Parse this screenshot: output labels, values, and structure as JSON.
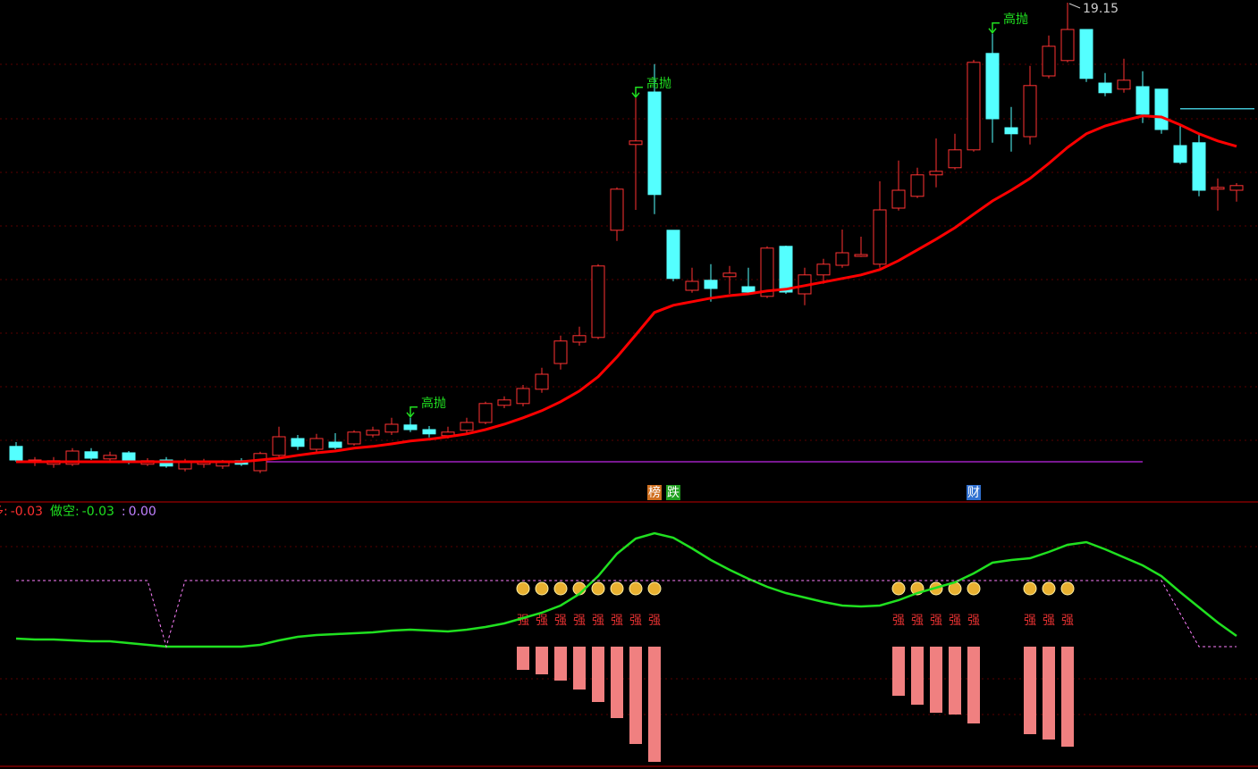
{
  "chart_data": [
    {
      "type": "candlestick",
      "ylim": [
        5.725,
        19.225
      ],
      "up_color": "#ff3232",
      "down_color": "#54ffff",
      "open": [
        6.73,
        6.28,
        6.23,
        6.23,
        6.58,
        6.38,
        6.55,
        6.23,
        6.35,
        6.1,
        6.23,
        6.18,
        6.33,
        6.05,
        6.48,
        6.95,
        6.65,
        6.85,
        6.8,
        7.05,
        7.13,
        7.33,
        7.2,
        7.03,
        7.18,
        7.4,
        7.88,
        7.93,
        8.33,
        9.05,
        9.65,
        9.78,
        12.78,
        15.18,
        16.65,
        12.78,
        11.1,
        11.38,
        11.48,
        11.2,
        10.93,
        12.33,
        11.0,
        11.53,
        11.8,
        12.05,
        11.83,
        13.4,
        13.73,
        14.33,
        14.53,
        15.03,
        17.73,
        15.65,
        15.4,
        17.1,
        17.53,
        18.4,
        16.9,
        16.73,
        16.8,
        16.73,
        15.15,
        15.23,
        13.93,
        13.9
      ],
      "high": [
        6.85,
        6.43,
        6.43,
        6.68,
        6.68,
        6.58,
        6.6,
        6.4,
        6.43,
        6.38,
        6.38,
        6.35,
        6.4,
        6.58,
        7.28,
        7.05,
        7.08,
        7.1,
        7.18,
        7.28,
        7.53,
        7.53,
        7.3,
        7.28,
        7.53,
        7.98,
        8.13,
        8.45,
        8.93,
        9.83,
        10.08,
        11.83,
        13.98,
        16.48,
        17.43,
        12.78,
        11.73,
        11.83,
        11.78,
        11.73,
        12.33,
        12.35,
        11.73,
        11.98,
        12.8,
        12.6,
        14.15,
        14.73,
        14.53,
        15.35,
        15.48,
        17.55,
        18.28,
        16.23,
        17.38,
        18.23,
        19.15,
        18.4,
        17.18,
        17.58,
        17.23,
        16.73,
        15.73,
        15.48,
        14.23,
        14.1
      ],
      "low": [
        6.3,
        6.18,
        6.13,
        6.18,
        6.35,
        6.28,
        6.23,
        6.18,
        6.13,
        6.03,
        6.13,
        6.1,
        6.18,
        5.98,
        6.43,
        6.63,
        6.58,
        6.65,
        6.75,
        6.98,
        7.05,
        7.13,
        6.98,
        6.95,
        7.1,
        7.35,
        7.8,
        7.85,
        8.23,
        8.88,
        9.55,
        9.73,
        12.48,
        13.35,
        13.23,
        11.35,
        11.03,
        10.78,
        11.0,
        11.0,
        10.88,
        11.0,
        10.68,
        11.28,
        11.73,
        12.03,
        11.73,
        13.33,
        13.68,
        13.98,
        14.48,
        14.98,
        15.23,
        14.98,
        15.18,
        17.03,
        17.48,
        16.93,
        16.53,
        16.63,
        15.78,
        15.48,
        14.63,
        13.73,
        13.33,
        13.58
      ],
      "close": [
        6.35,
        6.35,
        6.33,
        6.6,
        6.4,
        6.48,
        6.28,
        6.33,
        6.18,
        6.28,
        6.28,
        6.28,
        6.23,
        6.53,
        7.0,
        6.73,
        6.95,
        6.7,
        7.13,
        7.18,
        7.35,
        7.2,
        7.08,
        7.13,
        7.4,
        7.93,
        8.03,
        8.35,
        8.75,
        9.68,
        9.83,
        11.78,
        13.93,
        15.28,
        13.78,
        11.43,
        11.35,
        11.15,
        11.58,
        11.05,
        12.28,
        11.05,
        11.53,
        11.83,
        12.15,
        12.1,
        13.35,
        13.9,
        14.33,
        14.43,
        15.03,
        17.48,
        15.9,
        15.48,
        16.83,
        17.93,
        18.4,
        17.03,
        16.63,
        16.98,
        16.03,
        15.6,
        14.68,
        13.9,
        13.98,
        14.03
      ],
      "ma": {
        "color": "#ff0000",
        "values": [
          6.3,
          6.3,
          6.3,
          6.3,
          6.3,
          6.3,
          6.3,
          6.3,
          6.3,
          6.3,
          6.3,
          6.3,
          6.3,
          6.35,
          6.4,
          6.48,
          6.55,
          6.6,
          6.68,
          6.73,
          6.8,
          6.88,
          6.93,
          7.0,
          7.08,
          7.2,
          7.35,
          7.53,
          7.73,
          7.98,
          8.28,
          8.68,
          9.23,
          9.85,
          10.48,
          10.68,
          10.78,
          10.88,
          10.95,
          11.0,
          11.08,
          11.13,
          11.23,
          11.33,
          11.43,
          11.53,
          11.68,
          11.93,
          12.23,
          12.53,
          12.85,
          13.23,
          13.6,
          13.9,
          14.23,
          14.65,
          15.1,
          15.48,
          15.7,
          15.85,
          15.98,
          15.95,
          15.73,
          15.48,
          15.28,
          15.13
        ]
      },
      "levels": [
        {
          "value": 6.3,
          "color": "#a020c0",
          "from": 13,
          "to": 60
        },
        {
          "value": 16.18,
          "color": "#40c0d0",
          "from": 62,
          "to": 66
        }
      ],
      "price_labels": [
        {
          "index": 56
        }
      ],
      "annotations": [
        {
          "text": "高抛",
          "index": 21
        },
        {
          "text": "高抛",
          "index": 33
        },
        {
          "text": "高抛",
          "index": 52
        }
      ],
      "tags": [
        {
          "text": "榜",
          "index": 34,
          "color": "#d07020"
        },
        {
          "text": "跌",
          "index": 35,
          "color": "#20a020"
        },
        {
          "text": "财",
          "index": 51,
          "color": "#3070d0"
        }
      ]
    },
    {
      "type": "indicator",
      "ylim": [
        -1.34,
        1.61
      ],
      "readouts": [
        {
          "name": "做多:",
          "value": -0.03,
          "color": "#ff3030"
        },
        {
          "name": "做空:",
          "value": -0.03,
          "color": "#20e020"
        },
        {
          "name": ":",
          "value": 0,
          "value_label": "0.00",
          "color": "#c080ff"
        }
      ],
      "series": [
        {
          "color": "#20e020",
          "style": "solid",
          "values": [
            0.09,
            0.08,
            0.08,
            0.07,
            0.06,
            0.06,
            0.04,
            0.02,
            0,
            0,
            0,
            0,
            0,
            0.02,
            0.07,
            0.11,
            0.13,
            0.14,
            0.15,
            0.16,
            0.18,
            0.19,
            0.18,
            0.17,
            0.19,
            0.22,
            0.26,
            0.32,
            0.38,
            0.46,
            0.59,
            0.79,
            1.04,
            1.21,
            1.27,
            1.22,
            1.1,
            0.97,
            0.86,
            0.76,
            0.67,
            0.6,
            0.55,
            0.5,
            0.46,
            0.45,
            0.46,
            0.52,
            0.6,
            0.66,
            0.72,
            0.82,
            0.94,
            0.97,
            0.99,
            1.06,
            1.14,
            1.17,
            1.09,
            1.0,
            0.91,
            0.79,
            0.61,
            0.44,
            0.27,
            0.12
          ]
        },
        {
          "color": "#ff80ff",
          "style": "dashed",
          "values": [
            0.74,
            0.74,
            0.74,
            0.74,
            0.74,
            0.74,
            0.74,
            0.74,
            0,
            0.74,
            0.74,
            0.74,
            0.74,
            0.74,
            0.74,
            0.74,
            0.74,
            0.74,
            0.74,
            0.74,
            0.74,
            0.74,
            0.74,
            0.74,
            0.74,
            0.74,
            0.74,
            0.74,
            0.74,
            0.74,
            0.74,
            0.74,
            0.74,
            0.74,
            0.74,
            0.74,
            0.74,
            0.74,
            0.74,
            0.74,
            0.74,
            0.74,
            0.74,
            0.74,
            0.74,
            0.74,
            0.74,
            0.74,
            0.74,
            0.74,
            0.74,
            0.74,
            0.74,
            0.74,
            0.74,
            0.74,
            0.74,
            0.74,
            0.74,
            0.74,
            0.74,
            0.74,
            0.37,
            0,
            0,
            0
          ]
        }
      ],
      "bars": {
        "color": "#f08080",
        "values": [
          null,
          null,
          null,
          null,
          null,
          null,
          null,
          null,
          null,
          null,
          null,
          null,
          null,
          null,
          null,
          null,
          null,
          null,
          null,
          null,
          null,
          null,
          null,
          null,
          null,
          null,
          null,
          -0.26,
          -0.31,
          -0.38,
          -0.48,
          -0.62,
          -0.8,
          -1.09,
          -1.29,
          null,
          null,
          null,
          null,
          null,
          null,
          null,
          null,
          null,
          null,
          null,
          null,
          -0.55,
          -0.65,
          -0.74,
          -0.76,
          -0.86,
          null,
          null,
          -0.98,
          -1.04,
          -1.12,
          null,
          null,
          null,
          null,
          null,
          null,
          null,
          null,
          null
        ]
      },
      "signal_label": "强"
    }
  ]
}
